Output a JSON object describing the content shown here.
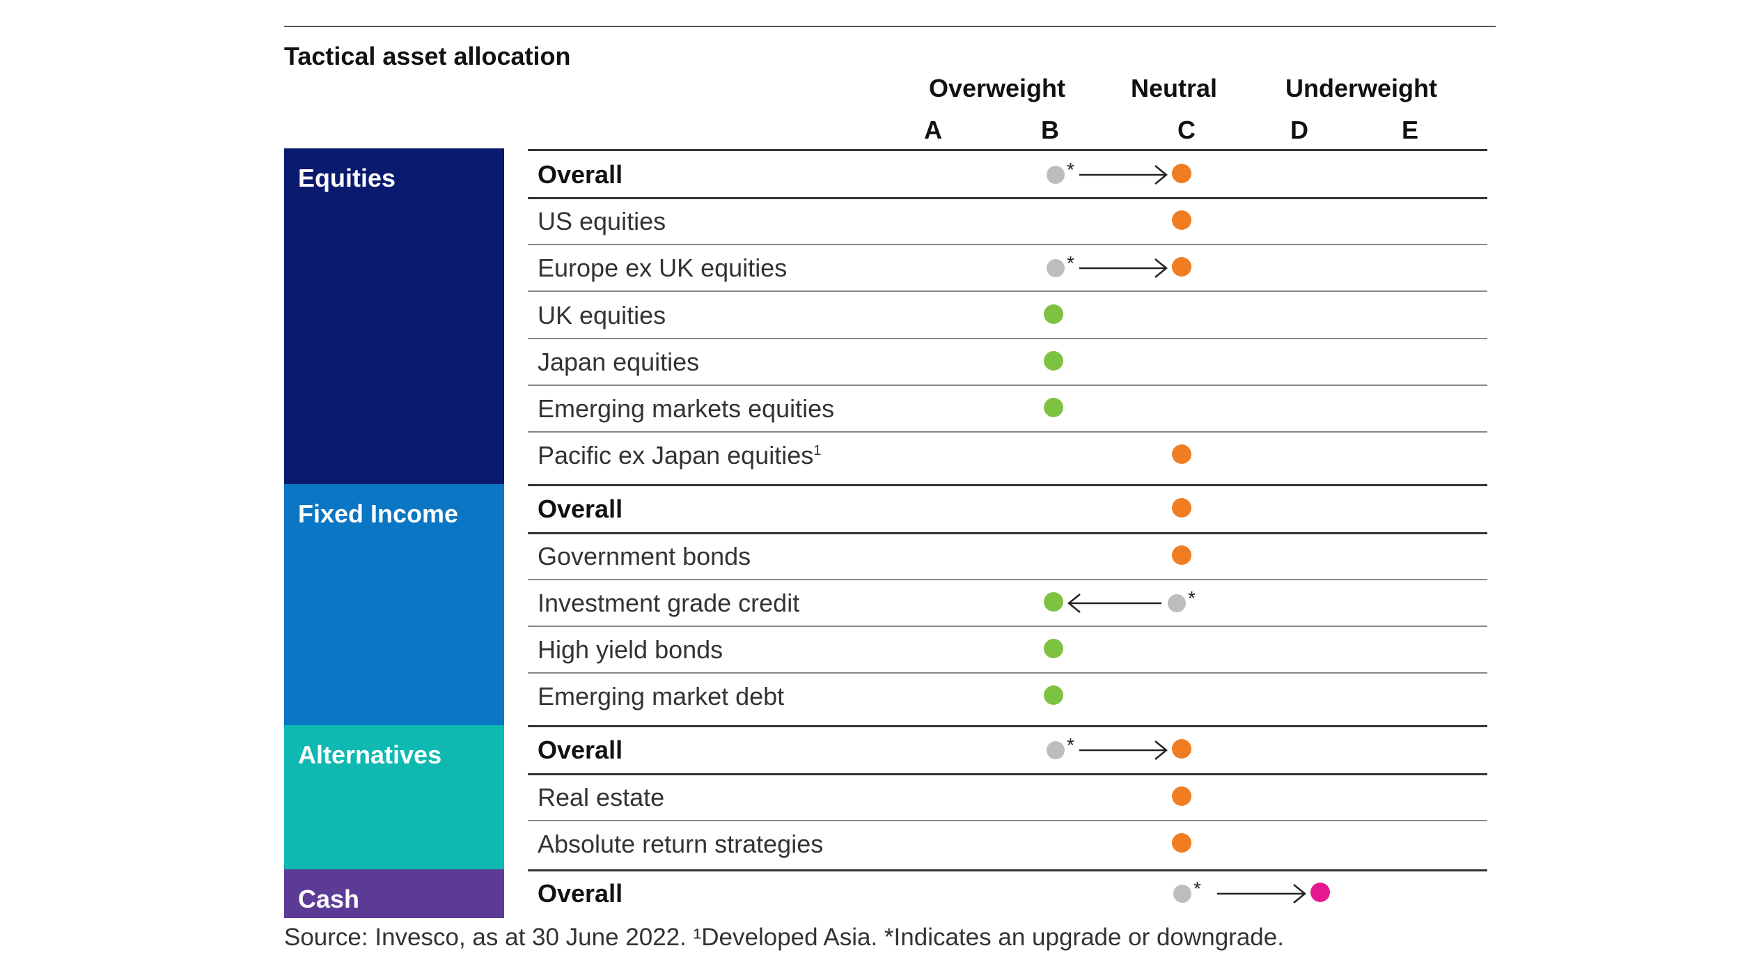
{
  "title": "Tactical asset allocation",
  "column_groups": {
    "overweight": "Overweight",
    "neutral": "Neutral",
    "underweight": "Underweight"
  },
  "scale_letters": [
    "A",
    "B",
    "C",
    "D",
    "E"
  ],
  "colors": {
    "equities": "#0a1a6e",
    "fixed_income": "#0a76c4",
    "alternatives": "#0fb8b0",
    "cash": "#5c3b96",
    "overweight_dot": "#7ec242",
    "neutral_dot": "#f07d22",
    "underweight_dot": "#e6188e",
    "previous_dot": "#bdbdbd"
  },
  "groups": [
    {
      "name": "Equities",
      "color_key": "equities"
    },
    {
      "name": "Fixed Income",
      "color_key": "fixed_income"
    },
    {
      "name": "Alternatives",
      "color_key": "alternatives"
    },
    {
      "name": "Cash",
      "color_key": "cash"
    }
  ],
  "chart_data": {
    "type": "table",
    "title": "Tactical asset allocation",
    "scale": [
      "A",
      "B",
      "C",
      "D",
      "E"
    ],
    "rows": [
      {
        "group": "Equities",
        "label": "Overall",
        "bold": true,
        "current": "C",
        "previous": "B",
        "marker": "*",
        "color_key": "neutral_dot"
      },
      {
        "group": "Equities",
        "label": "US equities",
        "bold": false,
        "current": "C",
        "previous": null,
        "color_key": "neutral_dot"
      },
      {
        "group": "Equities",
        "label": "Europe ex UK equities",
        "bold": false,
        "current": "C",
        "previous": "B",
        "marker": "*",
        "color_key": "neutral_dot"
      },
      {
        "group": "Equities",
        "label": "UK equities",
        "bold": false,
        "current": "B",
        "previous": null,
        "color_key": "overweight_dot"
      },
      {
        "group": "Equities",
        "label": "Japan equities",
        "bold": false,
        "current": "B",
        "previous": null,
        "color_key": "overweight_dot"
      },
      {
        "group": "Equities",
        "label": "Emerging markets equities",
        "bold": false,
        "current": "B",
        "previous": null,
        "color_key": "overweight_dot"
      },
      {
        "group": "Equities",
        "label": "Pacific ex Japan equities",
        "footnote": "1",
        "bold": false,
        "current": "C",
        "previous": null,
        "color_key": "neutral_dot"
      },
      {
        "group": "Fixed Income",
        "label": "Overall",
        "bold": true,
        "current": "C",
        "previous": null,
        "color_key": "neutral_dot"
      },
      {
        "group": "Fixed Income",
        "label": "Government bonds",
        "bold": false,
        "current": "C",
        "previous": null,
        "color_key": "neutral_dot"
      },
      {
        "group": "Fixed Income",
        "label": "Investment grade credit",
        "bold": false,
        "current": "B",
        "previous": "C",
        "marker": "*",
        "color_key": "overweight_dot"
      },
      {
        "group": "Fixed Income",
        "label": "High yield bonds",
        "bold": false,
        "current": "B",
        "previous": null,
        "color_key": "overweight_dot"
      },
      {
        "group": "Fixed Income",
        "label": "Emerging market debt",
        "bold": false,
        "current": "B",
        "previous": null,
        "color_key": "overweight_dot"
      },
      {
        "group": "Alternatives",
        "label": "Overall",
        "bold": true,
        "current": "C",
        "previous": "B",
        "marker": "*",
        "color_key": "neutral_dot"
      },
      {
        "group": "Alternatives",
        "label": "Real estate",
        "bold": false,
        "current": "C",
        "previous": null,
        "color_key": "neutral_dot"
      },
      {
        "group": "Alternatives",
        "label": "Absolute return strategies",
        "bold": false,
        "current": "C",
        "previous": null,
        "color_key": "neutral_dot"
      },
      {
        "group": "Cash",
        "label": "Overall",
        "bold": true,
        "current": "D",
        "previous": "C",
        "marker": "*",
        "color_key": "underweight_dot"
      }
    ]
  },
  "source_note": "Source: Invesco, as at 30 June 2022. ¹Developed Asia. *Indicates an upgrade or downgrade."
}
